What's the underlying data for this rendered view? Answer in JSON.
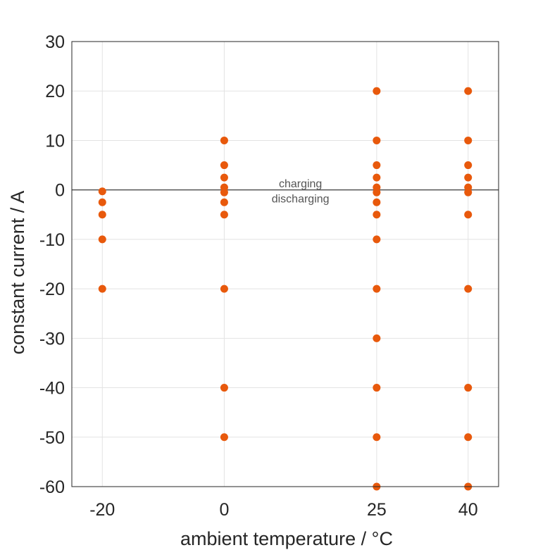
{
  "chart_data": {
    "type": "scatter",
    "xlabel": "ambient temperature / °C",
    "ylabel": "constant current / A",
    "x_ticks": [
      -20,
      0,
      25,
      40
    ],
    "x_tick_labels": [
      "-20",
      "0",
      "25",
      "40"
    ],
    "y_ticks": [
      30,
      20,
      10,
      0,
      -10,
      -20,
      -30,
      -40,
      -50,
      -60
    ],
    "y_tick_labels": [
      "30",
      "20",
      "10",
      "0",
      "-10",
      "-20",
      "-30",
      "-40",
      "-50",
      "-60"
    ],
    "xlim": [
      -25,
      45
    ],
    "ylim": [
      -60,
      30
    ],
    "grid": true,
    "reference_line": {
      "y": 0
    },
    "annotations": [
      {
        "text": "charging",
        "x": 12.5,
        "y": 1.2
      },
      {
        "text": "discharging",
        "x": 12.5,
        "y": -1.8
      }
    ],
    "marker_color": "#E8590C",
    "points": [
      {
        "x": -20,
        "y": -0.3
      },
      {
        "x": -20,
        "y": -2.5
      },
      {
        "x": -20,
        "y": -5
      },
      {
        "x": -20,
        "y": -10
      },
      {
        "x": -20,
        "y": -20
      },
      {
        "x": 0,
        "y": 10
      },
      {
        "x": 0,
        "y": 5
      },
      {
        "x": 0,
        "y": 2.5
      },
      {
        "x": 0,
        "y": 0.5
      },
      {
        "x": 0,
        "y": -0.5
      },
      {
        "x": 0,
        "y": -2.5
      },
      {
        "x": 0,
        "y": -5
      },
      {
        "x": 0,
        "y": -20
      },
      {
        "x": 0,
        "y": -40
      },
      {
        "x": 0,
        "y": -50
      },
      {
        "x": 25,
        "y": 20
      },
      {
        "x": 25,
        "y": 10
      },
      {
        "x": 25,
        "y": 5
      },
      {
        "x": 25,
        "y": 2.5
      },
      {
        "x": 25,
        "y": 0.5
      },
      {
        "x": 25,
        "y": -0.5
      },
      {
        "x": 25,
        "y": -2.5
      },
      {
        "x": 25,
        "y": -5
      },
      {
        "x": 25,
        "y": -10
      },
      {
        "x": 25,
        "y": -20
      },
      {
        "x": 25,
        "y": -30
      },
      {
        "x": 25,
        "y": -40
      },
      {
        "x": 25,
        "y": -50
      },
      {
        "x": 25,
        "y": -60
      },
      {
        "x": 40,
        "y": 20
      },
      {
        "x": 40,
        "y": 10
      },
      {
        "x": 40,
        "y": 5
      },
      {
        "x": 40,
        "y": 2.5
      },
      {
        "x": 40,
        "y": 0.5
      },
      {
        "x": 40,
        "y": -0.5
      },
      {
        "x": 40,
        "y": -5
      },
      {
        "x": 40,
        "y": -20
      },
      {
        "x": 40,
        "y": -40
      },
      {
        "x": 40,
        "y": -50
      },
      {
        "x": 40,
        "y": -60
      }
    ]
  }
}
